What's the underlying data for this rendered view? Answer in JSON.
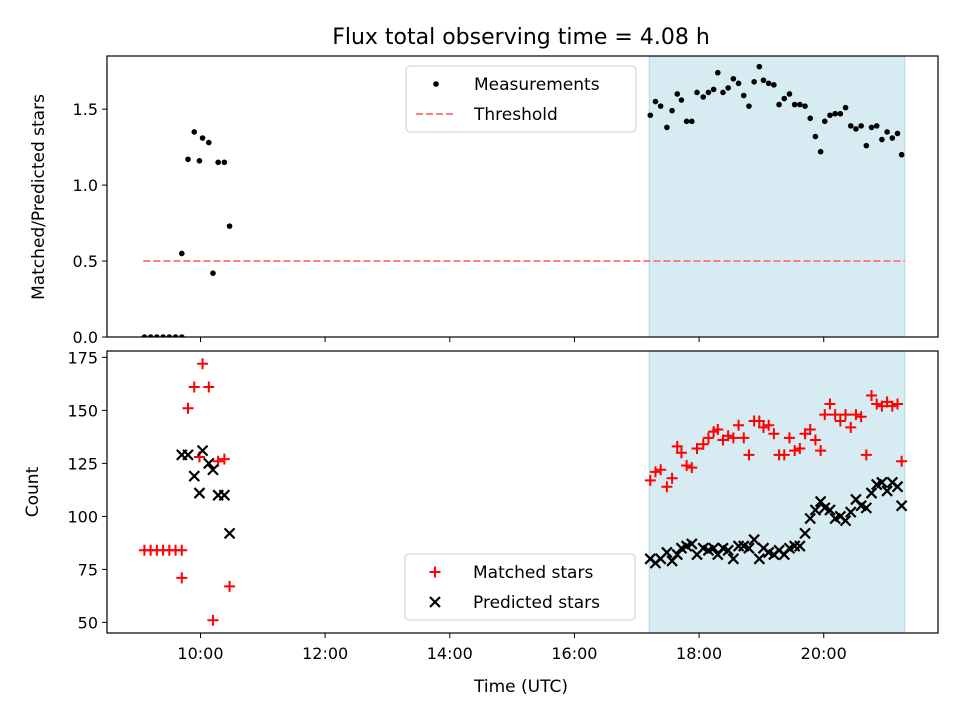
{
  "figure": {
    "title": "Flux total observing time = 4.08 h",
    "xlabel": "Time (UTC)",
    "x_tick_labels": [
      "10:00",
      "12:00",
      "14:00",
      "16:00",
      "18:00",
      "20:00"
    ],
    "highlight_color": "#add8e6"
  },
  "chart_data": [
    {
      "type": "scatter",
      "ylabel": "Matched/Predicted stars",
      "xlim": [
        "08:30",
        "21:50"
      ],
      "ylim": [
        0,
        1.85
      ],
      "y_ticks": [
        0.0,
        0.5,
        1.0,
        1.5
      ],
      "y_tick_labels": [
        "0.0",
        "0.5",
        "1.0",
        "1.5"
      ],
      "highlight_span": [
        "17:12",
        "21:18"
      ],
      "legend_position": "upper center",
      "threshold": {
        "name": "Threshold",
        "value": 0.5,
        "x_range": [
          "09:05",
          "21:18"
        ],
        "color": "#ff7f7f",
        "style": "dashed"
      },
      "series": [
        {
          "name": "Measurements",
          "color": "#000000",
          "marker": "dot",
          "points": [
            [
              "09:06",
              0.0
            ],
            [
              "09:12",
              0.0
            ],
            [
              "09:18",
              0.0
            ],
            [
              "09:24",
              0.0
            ],
            [
              "09:30",
              0.0
            ],
            [
              "09:36",
              0.0
            ],
            [
              "09:42",
              0.0
            ],
            [
              "09:42",
              0.55
            ],
            [
              "09:48",
              1.17
            ],
            [
              "09:54",
              1.35
            ],
            [
              "09:59",
              1.16
            ],
            [
              "10:02",
              1.31
            ],
            [
              "10:08",
              1.28
            ],
            [
              "10:12",
              0.42
            ],
            [
              "10:17",
              1.15
            ],
            [
              "10:23",
              1.15
            ],
            [
              "10:28",
              0.73
            ],
            [
              "17:13",
              1.46
            ],
            [
              "17:18",
              1.55
            ],
            [
              "17:23",
              1.52
            ],
            [
              "17:29",
              1.38
            ],
            [
              "17:34",
              1.49
            ],
            [
              "17:39",
              1.6
            ],
            [
              "17:43",
              1.56
            ],
            [
              "17:48",
              1.42
            ],
            [
              "17:53",
              1.42
            ],
            [
              "17:58",
              1.61
            ],
            [
              "18:04",
              1.58
            ],
            [
              "18:09",
              1.61
            ],
            [
              "18:14",
              1.63
            ],
            [
              "18:18",
              1.74
            ],
            [
              "18:23",
              1.61
            ],
            [
              "18:28",
              1.64
            ],
            [
              "18:33",
              1.7
            ],
            [
              "18:38",
              1.67
            ],
            [
              "18:43",
              1.59
            ],
            [
              "18:48",
              1.52
            ],
            [
              "18:53",
              1.68
            ],
            [
              "18:58",
              1.78
            ],
            [
              "19:02",
              1.69
            ],
            [
              "19:07",
              1.67
            ],
            [
              "19:12",
              1.66
            ],
            [
              "19:17",
              1.53
            ],
            [
              "19:22",
              1.57
            ],
            [
              "19:27",
              1.6
            ],
            [
              "19:32",
              1.53
            ],
            [
              "19:37",
              1.53
            ],
            [
              "19:42",
              1.52
            ],
            [
              "19:47",
              1.44
            ],
            [
              "19:52",
              1.32
            ],
            [
              "19:57",
              1.22
            ],
            [
              "20:01",
              1.42
            ],
            [
              "20:06",
              1.46
            ],
            [
              "20:11",
              1.47
            ],
            [
              "20:16",
              1.47
            ],
            [
              "20:21",
              1.51
            ],
            [
              "20:26",
              1.39
            ],
            [
              "20:31",
              1.37
            ],
            [
              "20:36",
              1.39
            ],
            [
              "20:41",
              1.26
            ],
            [
              "20:46",
              1.38
            ],
            [
              "20:51",
              1.39
            ],
            [
              "20:56",
              1.3
            ],
            [
              "21:01",
              1.35
            ],
            [
              "21:06",
              1.31
            ],
            [
              "21:11",
              1.34
            ],
            [
              "21:15",
              1.2
            ]
          ]
        }
      ]
    },
    {
      "type": "scatter",
      "ylabel": "Count",
      "xlim": [
        "08:30",
        "21:50"
      ],
      "ylim": [
        45,
        178
      ],
      "y_ticks": [
        50,
        75,
        100,
        125,
        150,
        175
      ],
      "y_tick_labels": [
        "50",
        "75",
        "100",
        "125",
        "150",
        "175"
      ],
      "highlight_span": [
        "17:12",
        "21:18"
      ],
      "legend_position": "lower center",
      "series": [
        {
          "name": "Matched stars",
          "color": "#ff0000",
          "marker": "plus",
          "points": [
            [
              "09:06",
              84
            ],
            [
              "09:12",
              84
            ],
            [
              "09:18",
              84
            ],
            [
              "09:24",
              84
            ],
            [
              "09:30",
              84
            ],
            [
              "09:36",
              84
            ],
            [
              "09:42",
              84
            ],
            [
              "09:42",
              71
            ],
            [
              "09:48",
              151
            ],
            [
              "09:54",
              161
            ],
            [
              "09:59",
              128
            ],
            [
              "10:02",
              172
            ],
            [
              "10:08",
              161
            ],
            [
              "10:12",
              51
            ],
            [
              "10:17",
              126
            ],
            [
              "10:23",
              127
            ],
            [
              "10:28",
              67
            ],
            [
              "17:13",
              117
            ],
            [
              "17:18",
              121
            ],
            [
              "17:23",
              122
            ],
            [
              "17:29",
              114
            ],
            [
              "17:34",
              118
            ],
            [
              "17:39",
              133
            ],
            [
              "17:43",
              130
            ],
            [
              "17:48",
              124
            ],
            [
              "17:53",
              123
            ],
            [
              "17:58",
              132
            ],
            [
              "18:04",
              134
            ],
            [
              "18:09",
              137
            ],
            [
              "18:14",
              140
            ],
            [
              "18:18",
              141
            ],
            [
              "18:23",
              136
            ],
            [
              "18:28",
              138
            ],
            [
              "18:33",
              137
            ],
            [
              "18:38",
              143
            ],
            [
              "18:43",
              137
            ],
            [
              "18:48",
              129
            ],
            [
              "18:53",
              145
            ],
            [
              "18:58",
              145
            ],
            [
              "19:02",
              142
            ],
            [
              "19:07",
              143
            ],
            [
              "19:12",
              139
            ],
            [
              "19:17",
              129
            ],
            [
              "19:22",
              129
            ],
            [
              "19:27",
              137
            ],
            [
              "19:32",
              131
            ],
            [
              "19:37",
              132
            ],
            [
              "19:42",
              139
            ],
            [
              "19:47",
              141
            ],
            [
              "19:52",
              136
            ],
            [
              "19:57",
              131
            ],
            [
              "20:01",
              148
            ],
            [
              "20:06",
              153
            ],
            [
              "20:11",
              148
            ],
            [
              "20:16",
              145
            ],
            [
              "20:21",
              148
            ],
            [
              "20:26",
              142
            ],
            [
              "20:31",
              148
            ],
            [
              "20:36",
              147
            ],
            [
              "20:41",
              129
            ],
            [
              "20:46",
              157
            ],
            [
              "20:51",
              153
            ],
            [
              "20:56",
              152
            ],
            [
              "21:01",
              154
            ],
            [
              "21:06",
              152
            ],
            [
              "21:11",
              153
            ],
            [
              "21:15",
              126
            ]
          ]
        },
        {
          "name": "Predicted stars",
          "color": "#000000",
          "marker": "x",
          "points": [
            [
              "09:42",
              129
            ],
            [
              "09:48",
              129
            ],
            [
              "09:54",
              119
            ],
            [
              "09:59",
              111
            ],
            [
              "10:02",
              131
            ],
            [
              "10:08",
              125
            ],
            [
              "10:12",
              122
            ],
            [
              "10:17",
              110
            ],
            [
              "10:23",
              110
            ],
            [
              "10:28",
              92
            ],
            [
              "17:13",
              80
            ],
            [
              "17:18",
              78
            ],
            [
              "17:23",
              80
            ],
            [
              "17:29",
              83
            ],
            [
              "17:34",
              79
            ],
            [
              "17:39",
              82
            ],
            [
              "17:43",
              85
            ],
            [
              "17:48",
              86
            ],
            [
              "17:53",
              87
            ],
            [
              "17:58",
              82
            ],
            [
              "18:04",
              85
            ],
            [
              "18:09",
              84
            ],
            [
              "18:14",
              85
            ],
            [
              "18:18",
              82
            ],
            [
              "18:23",
              85
            ],
            [
              "18:28",
              84
            ],
            [
              "18:33",
              80
            ],
            [
              "18:38",
              86
            ],
            [
              "18:43",
              86
            ],
            [
              "18:48",
              85
            ],
            [
              "18:53",
              89
            ],
            [
              "18:58",
              80
            ],
            [
              "19:02",
              85
            ],
            [
              "19:07",
              83
            ],
            [
              "19:12",
              82
            ],
            [
              "19:17",
              84
            ],
            [
              "19:22",
              82
            ],
            [
              "19:27",
              85
            ],
            [
              "19:32",
              86
            ],
            [
              "19:37",
              86
            ],
            [
              "19:42",
              92
            ],
            [
              "19:47",
              99
            ],
            [
              "19:52",
              103
            ],
            [
              "19:57",
              107
            ],
            [
              "20:01",
              104
            ],
            [
              "20:06",
              103
            ],
            [
              "20:11",
              99
            ],
            [
              "20:16",
              100
            ],
            [
              "20:21",
              98
            ],
            [
              "20:26",
              102
            ],
            [
              "20:31",
              108
            ],
            [
              "20:36",
              105
            ],
            [
              "20:41",
              104
            ],
            [
              "20:46",
              111
            ],
            [
              "20:51",
              115
            ],
            [
              "20:56",
              116
            ],
            [
              "21:01",
              112
            ],
            [
              "21:06",
              116
            ],
            [
              "21:11",
              114
            ],
            [
              "21:15",
              105
            ]
          ]
        }
      ]
    }
  ]
}
